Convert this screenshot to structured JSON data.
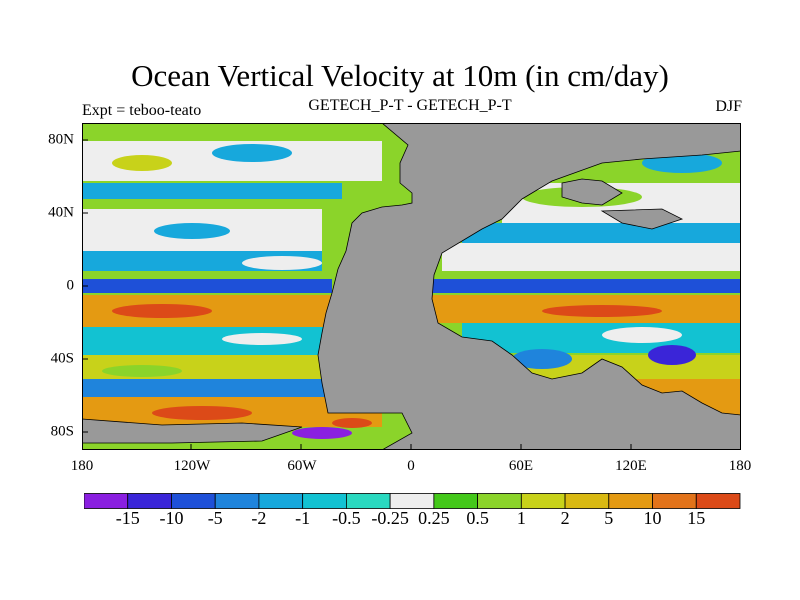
{
  "title": "Ocean Vertical Velocity at 10m (in cm/day)",
  "left_string": "Expt = teboo-teato",
  "center_string": "GETECH_P-T - GETECH_P-T",
  "right_string": "DJF",
  "lat_labels": [
    "80N",
    "40N",
    "0",
    "40S",
    "80S"
  ],
  "lon_labels": [
    "180",
    "120W",
    "60W",
    "0",
    "60E",
    "120E",
    "180"
  ],
  "colorbar": {
    "labels": [
      "-15",
      "-10",
      "-5",
      "-2",
      "-1",
      "-0.5",
      "-0.25",
      "0.25",
      "0.5",
      "1",
      "2",
      "5",
      "10",
      "15"
    ],
    "colors": [
      "#8a1fe0",
      "#3a25d8",
      "#1e50d8",
      "#1f84dc",
      "#17a8dc",
      "#12c2d2",
      "#2ad9c0",
      "#eeeeee",
      "#44c81a",
      "#8bd42a",
      "#c8d21a",
      "#d9b912",
      "#e49a12",
      "#e2731a",
      "#dc4a18"
    ]
  },
  "colors": {
    "land": "#999999",
    "frame": "#000000"
  }
}
